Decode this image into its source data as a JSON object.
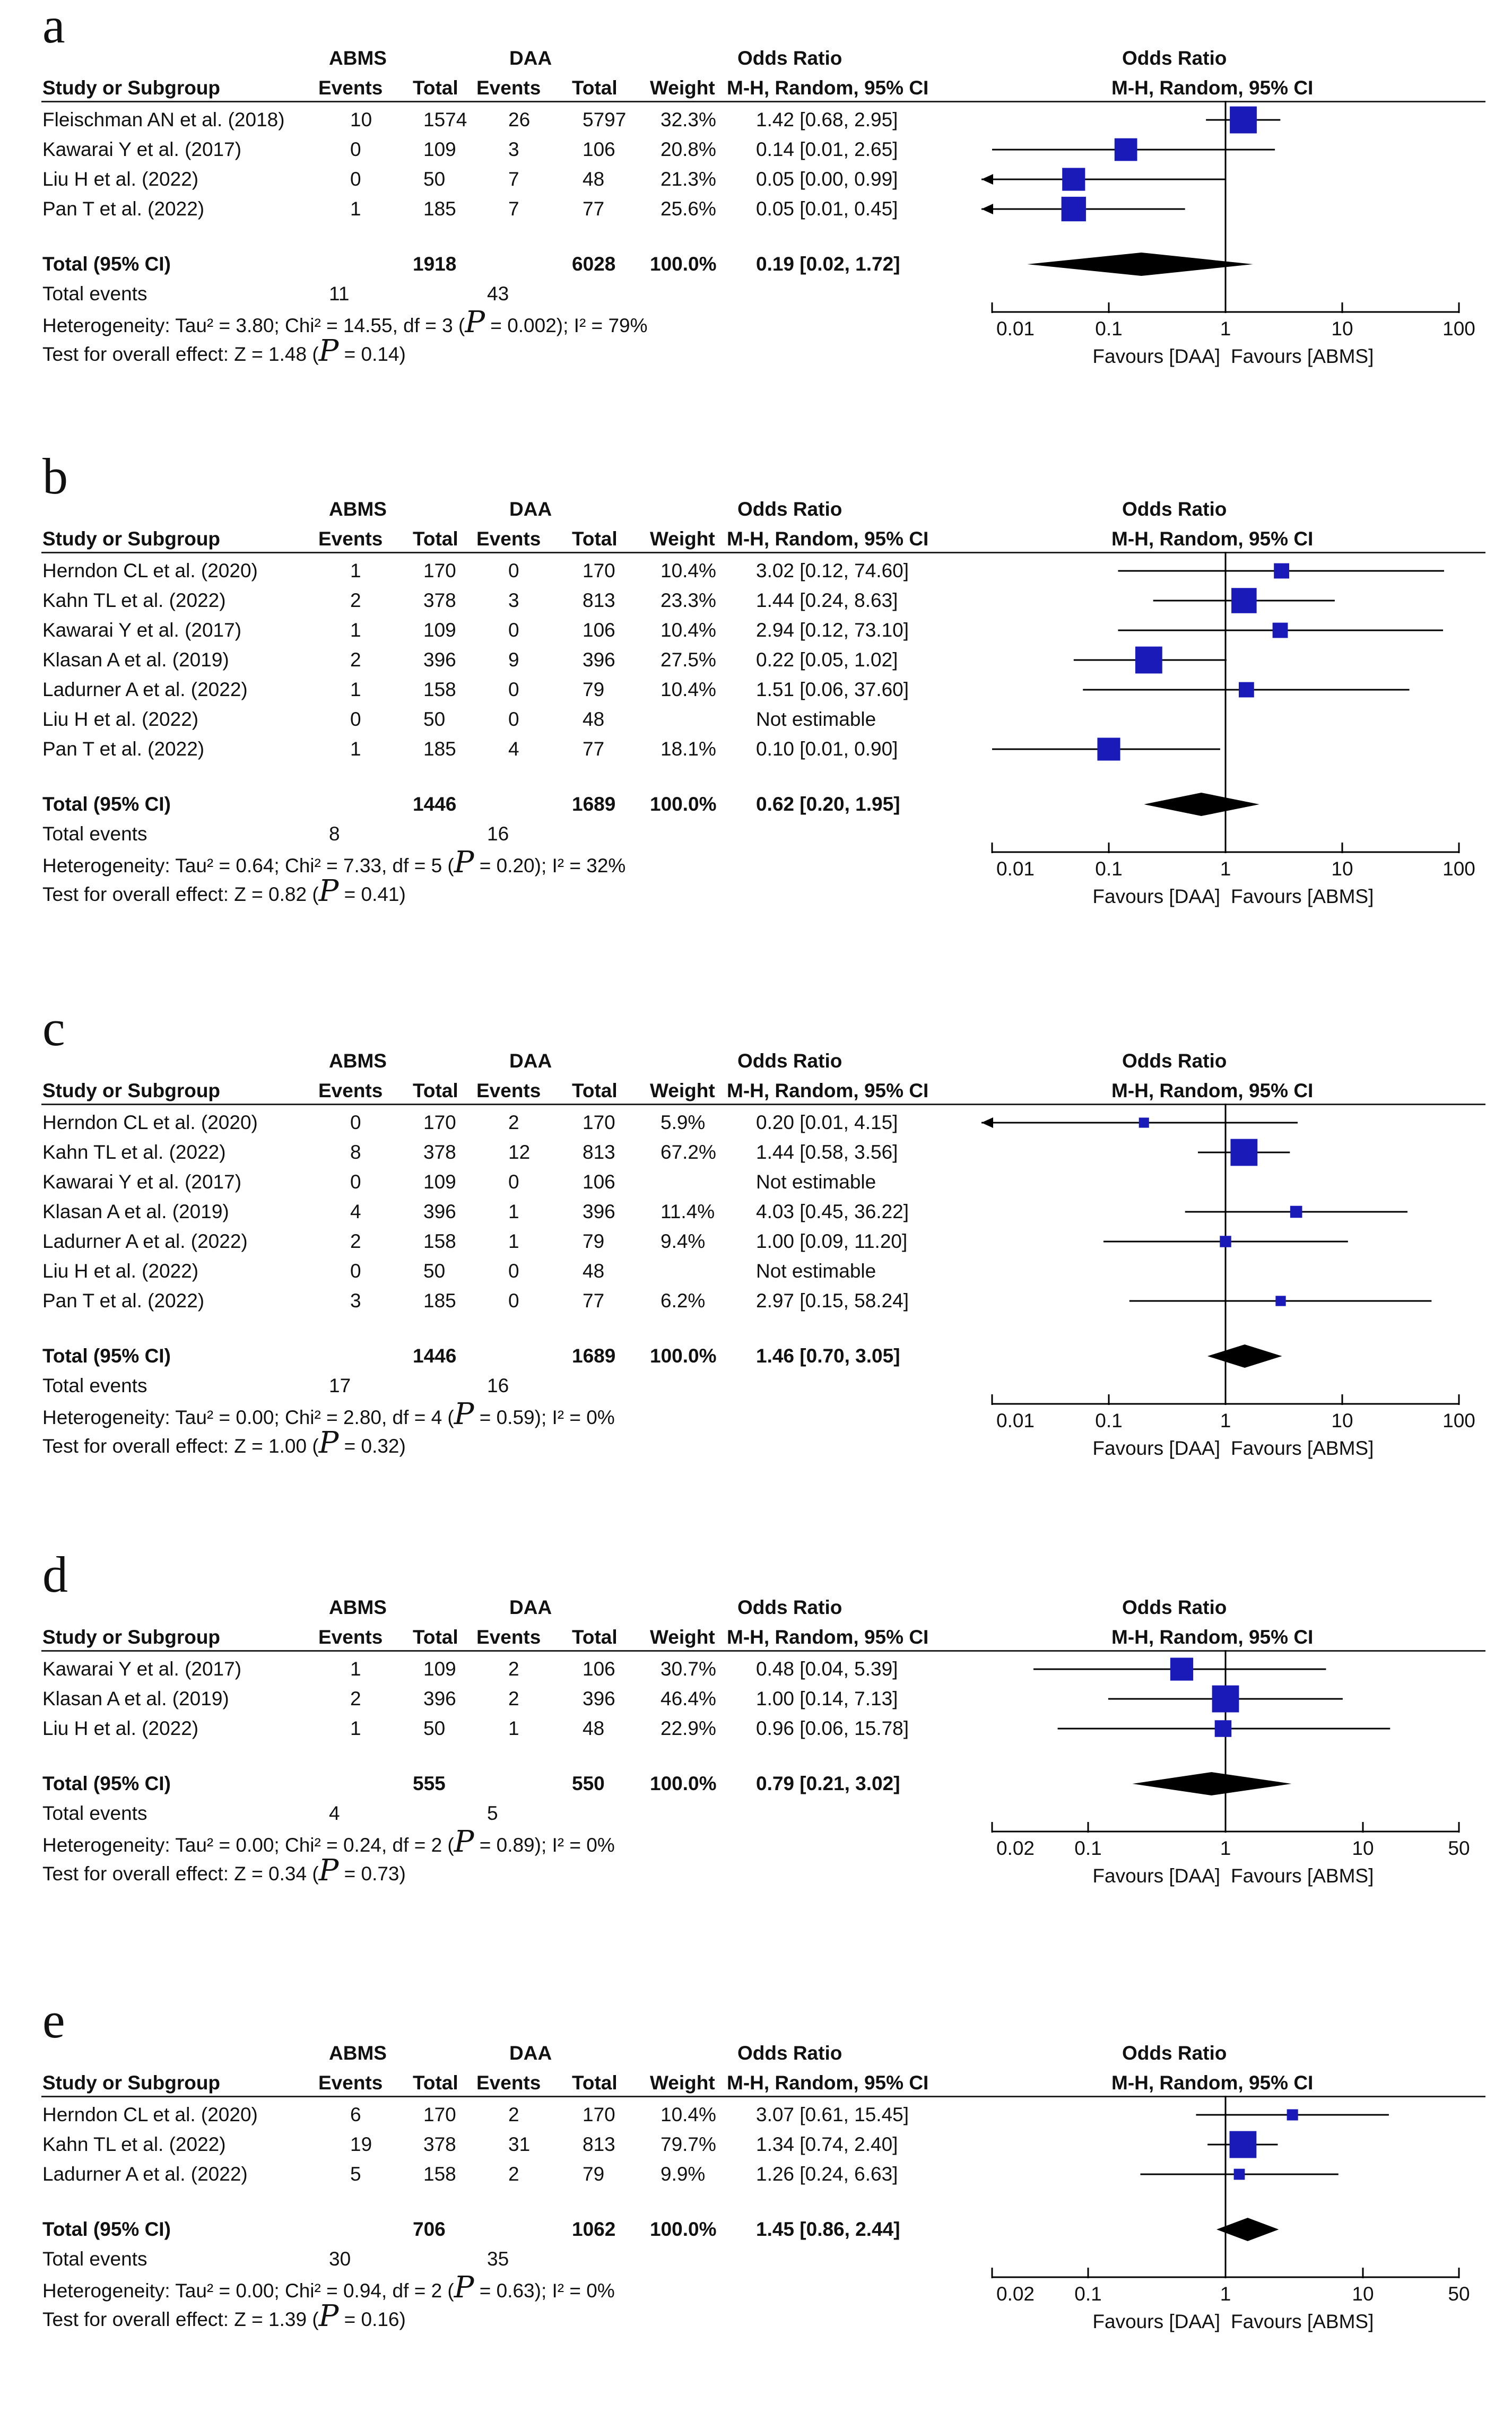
{
  "group_a_label": "ABMS",
  "group_b_label": "DAA",
  "col_headers": {
    "study": "Study or Subgroup",
    "events": "Events",
    "total": "Total",
    "weight": "Weight",
    "or_top": "Odds Ratio",
    "or_bottom": "M-H, Random, 95% CI"
  },
  "favours_left": "Favours [DAA]",
  "favours_right": "Favours [ABMS]",
  "total_label": "Total (95% CI)",
  "total_events_label": "Total events",
  "chart_data": [
    {
      "type": "forest",
      "panel_label": "a",
      "axis_min": 0.01,
      "axis_max": 100,
      "ticks": [
        {
          "v": 0.01,
          "label": "0.01"
        },
        {
          "v": 0.1,
          "label": "0.1"
        },
        {
          "v": 1,
          "label": "1"
        },
        {
          "v": 10,
          "label": "10"
        },
        {
          "v": 100,
          "label": "100"
        }
      ],
      "studies": [
        {
          "name": "Fleischman AN et al. (2018)",
          "e1": "10",
          "n1": "1574",
          "e2": "26",
          "n2": "5797",
          "weight": "32.3%",
          "or_text": "1.42 [0.68, 2.95]",
          "or": 1.42,
          "lo": 0.68,
          "hi": 2.95
        },
        {
          "name": "Kawarai Y et al. (2017)",
          "e1": "0",
          "n1": "109",
          "e2": "3",
          "n2": "106",
          "weight": "20.8%",
          "or_text": "0.14 [0.01, 2.65]",
          "or": 0.14,
          "lo": 0.01,
          "hi": 2.65
        },
        {
          "name": "Liu H et al. (2022)",
          "e1": "0",
          "n1": "50",
          "e2": "7",
          "n2": "48",
          "weight": "21.3%",
          "or_text": "0.05 [0.00, 0.99]",
          "or": 0.05,
          "lo": 0.001,
          "hi": 0.99
        },
        {
          "name": "Pan T et al. (2022)",
          "e1": "1",
          "n1": "185",
          "e2": "7",
          "n2": "77",
          "weight": "25.6%",
          "or_text": "0.05 [0.01, 0.45]",
          "or": 0.05,
          "lo": 0.005,
          "hi": 0.45
        }
      ],
      "total": {
        "n1": "1918",
        "n2": "6028",
        "weight": "100.0%",
        "or_text": "0.19 [0.02, 1.72]",
        "or": 0.19,
        "lo": 0.02,
        "hi": 1.72
      },
      "total_events": {
        "e1": "11",
        "e2": "43"
      },
      "heterogeneity": {
        "pre": "Heterogeneity: Tau² = 3.80; Chi² = 14.55, df = 3 (",
        "p": "P",
        "post": " = 0.002); I² = 79%"
      },
      "overall": {
        "pre": "Test for overall effect: Z = 1.48 (",
        "p": "P",
        "post": " = 0.14)"
      }
    },
    {
      "type": "forest",
      "panel_label": "b",
      "axis_min": 0.01,
      "axis_max": 100,
      "ticks": [
        {
          "v": 0.01,
          "label": "0.01"
        },
        {
          "v": 0.1,
          "label": "0.1"
        },
        {
          "v": 1,
          "label": "1"
        },
        {
          "v": 10,
          "label": "10"
        },
        {
          "v": 100,
          "label": "100"
        }
      ],
      "studies": [
        {
          "name": "Herndon CL et al. (2020)",
          "e1": "1",
          "n1": "170",
          "e2": "0",
          "n2": "170",
          "weight": "10.4%",
          "or_text": "3.02 [0.12, 74.60]",
          "or": 3.02,
          "lo": 0.12,
          "hi": 74.6
        },
        {
          "name": "Kahn TL et al. (2022)",
          "e1": "2",
          "n1": "378",
          "e2": "3",
          "n2": "813",
          "weight": "23.3%",
          "or_text": "1.44 [0.24, 8.63]",
          "or": 1.44,
          "lo": 0.24,
          "hi": 8.63
        },
        {
          "name": "Kawarai Y et al. (2017)",
          "e1": "1",
          "n1": "109",
          "e2": "0",
          "n2": "106",
          "weight": "10.4%",
          "or_text": "2.94 [0.12, 73.10]",
          "or": 2.94,
          "lo": 0.12,
          "hi": 73.1
        },
        {
          "name": "Klasan A et al. (2019)",
          "e1": "2",
          "n1": "396",
          "e2": "9",
          "n2": "396",
          "weight": "27.5%",
          "or_text": "0.22 [0.05, 1.02]",
          "or": 0.22,
          "lo": 0.05,
          "hi": 1.02
        },
        {
          "name": "Ladurner A et al. (2022)",
          "e1": "1",
          "n1": "158",
          "e2": "0",
          "n2": "79",
          "weight": "10.4%",
          "or_text": "1.51 [0.06, 37.60]",
          "or": 1.51,
          "lo": 0.06,
          "hi": 37.6
        },
        {
          "name": "Liu H et al. (2022)",
          "e1": "0",
          "n1": "50",
          "e2": "0",
          "n2": "48",
          "weight": "",
          "or_text": "Not estimable",
          "or": null,
          "lo": null,
          "hi": null
        },
        {
          "name": "Pan T et al. (2022)",
          "e1": "1",
          "n1": "185",
          "e2": "4",
          "n2": "77",
          "weight": "18.1%",
          "or_text": "0.10 [0.01, 0.90]",
          "or": 0.1,
          "lo": 0.01,
          "hi": 0.9
        }
      ],
      "total": {
        "n1": "1446",
        "n2": "1689",
        "weight": "100.0%",
        "or_text": "0.62 [0.20, 1.95]",
        "or": 0.62,
        "lo": 0.2,
        "hi": 1.95
      },
      "total_events": {
        "e1": "8",
        "e2": "16"
      },
      "heterogeneity": {
        "pre": "Heterogeneity: Tau² = 0.64; Chi² = 7.33, df = 5 (",
        "p": "P",
        "post": " = 0.20); I² = 32%"
      },
      "overall": {
        "pre": "Test for overall effect: Z = 0.82 (",
        "p": "P",
        "post": " = 0.41)"
      }
    },
    {
      "type": "forest",
      "panel_label": "c",
      "axis_min": 0.01,
      "axis_max": 100,
      "ticks": [
        {
          "v": 0.01,
          "label": "0.01"
        },
        {
          "v": 0.1,
          "label": "0.1"
        },
        {
          "v": 1,
          "label": "1"
        },
        {
          "v": 10,
          "label": "10"
        },
        {
          "v": 100,
          "label": "100"
        }
      ],
      "studies": [
        {
          "name": "Herndon CL et al. (2020)",
          "e1": "0",
          "n1": "170",
          "e2": "2",
          "n2": "170",
          "weight": "5.9%",
          "or_text": "0.20 [0.01, 4.15]",
          "or": 0.2,
          "lo": 0.005,
          "hi": 4.15
        },
        {
          "name": "Kahn TL et al. (2022)",
          "e1": "8",
          "n1": "378",
          "e2": "12",
          "n2": "813",
          "weight": "67.2%",
          "or_text": "1.44 [0.58, 3.56]",
          "or": 1.44,
          "lo": 0.58,
          "hi": 3.56
        },
        {
          "name": "Kawarai Y et al. (2017)",
          "e1": "0",
          "n1": "109",
          "e2": "0",
          "n2": "106",
          "weight": "",
          "or_text": "Not estimable",
          "or": null,
          "lo": null,
          "hi": null
        },
        {
          "name": "Klasan A et al. (2019)",
          "e1": "4",
          "n1": "396",
          "e2": "1",
          "n2": "396",
          "weight": "11.4%",
          "or_text": "4.03 [0.45, 36.22]",
          "or": 4.03,
          "lo": 0.45,
          "hi": 36.22
        },
        {
          "name": "Ladurner A et al. (2022)",
          "e1": "2",
          "n1": "158",
          "e2": "1",
          "n2": "79",
          "weight": "9.4%",
          "or_text": "1.00 [0.09, 11.20]",
          "or": 1.0,
          "lo": 0.09,
          "hi": 11.2
        },
        {
          "name": "Liu H et al. (2022)",
          "e1": "0",
          "n1": "50",
          "e2": "0",
          "n2": "48",
          "weight": "",
          "or_text": "Not estimable",
          "or": null,
          "lo": null,
          "hi": null
        },
        {
          "name": "Pan T et al. (2022)",
          "e1": "3",
          "n1": "185",
          "e2": "0",
          "n2": "77",
          "weight": "6.2%",
          "or_text": "2.97 [0.15, 58.24]",
          "or": 2.97,
          "lo": 0.15,
          "hi": 58.24
        }
      ],
      "total": {
        "n1": "1446",
        "n2": "1689",
        "weight": "100.0%",
        "or_text": "1.46 [0.70, 3.05]",
        "or": 1.46,
        "lo": 0.7,
        "hi": 3.05
      },
      "total_events": {
        "e1": "17",
        "e2": "16"
      },
      "heterogeneity": {
        "pre": "Heterogeneity: Tau² = 0.00; Chi² = 2.80, df = 4 (",
        "p": "P",
        "post": " = 0.59); I² = 0%"
      },
      "overall": {
        "pre": "Test for overall effect: Z = 1.00 (",
        "p": "P",
        "post": " = 0.32)"
      }
    },
    {
      "type": "forest",
      "panel_label": "d",
      "axis_min": 0.02,
      "axis_max": 50,
      "ticks": [
        {
          "v": 0.02,
          "label": "0.02"
        },
        {
          "v": 0.1,
          "label": "0.1"
        },
        {
          "v": 1,
          "label": "1"
        },
        {
          "v": 10,
          "label": "10"
        },
        {
          "v": 50,
          "label": "50"
        }
      ],
      "studies": [
        {
          "name": "Kawarai Y et al. (2017)",
          "e1": "1",
          "n1": "109",
          "e2": "2",
          "n2": "106",
          "weight": "30.7%",
          "or_text": "0.48 [0.04, 5.39]",
          "or": 0.48,
          "lo": 0.04,
          "hi": 5.39
        },
        {
          "name": "Klasan A et al. (2019)",
          "e1": "2",
          "n1": "396",
          "e2": "2",
          "n2": "396",
          "weight": "46.4%",
          "or_text": "1.00 [0.14, 7.13]",
          "or": 1.0,
          "lo": 0.14,
          "hi": 7.13
        },
        {
          "name": "Liu H et al. (2022)",
          "e1": "1",
          "n1": "50",
          "e2": "1",
          "n2": "48",
          "weight": "22.9%",
          "or_text": "0.96 [0.06, 15.78]",
          "or": 0.96,
          "lo": 0.06,
          "hi": 15.78
        }
      ],
      "total": {
        "n1": "555",
        "n2": "550",
        "weight": "100.0%",
        "or_text": "0.79 [0.21, 3.02]",
        "or": 0.79,
        "lo": 0.21,
        "hi": 3.02
      },
      "total_events": {
        "e1": "4",
        "e2": "5"
      },
      "heterogeneity": {
        "pre": "Heterogeneity: Tau² = 0.00; Chi² = 0.24, df = 2 (",
        "p": "P",
        "post": " = 0.89); I² = 0%"
      },
      "overall": {
        "pre": "Test for overall effect: Z = 0.34 (",
        "p": "P",
        "post": " = 0.73)"
      }
    },
    {
      "type": "forest",
      "panel_label": "e",
      "axis_min": 0.02,
      "axis_max": 50,
      "ticks": [
        {
          "v": 0.02,
          "label": "0.02"
        },
        {
          "v": 0.1,
          "label": "0.1"
        },
        {
          "v": 1,
          "label": "1"
        },
        {
          "v": 10,
          "label": "10"
        },
        {
          "v": 50,
          "label": "50"
        }
      ],
      "studies": [
        {
          "name": "Herndon CL et al. (2020)",
          "e1": "6",
          "n1": "170",
          "e2": "2",
          "n2": "170",
          "weight": "10.4%",
          "or_text": "3.07 [0.61, 15.45]",
          "or": 3.07,
          "lo": 0.61,
          "hi": 15.45
        },
        {
          "name": "Kahn TL et al. (2022)",
          "e1": "19",
          "n1": "378",
          "e2": "31",
          "n2": "813",
          "weight": "79.7%",
          "or_text": "1.34 [0.74, 2.40]",
          "or": 1.34,
          "lo": 0.74,
          "hi": 2.4
        },
        {
          "name": "Ladurner A et al. (2022)",
          "e1": "5",
          "n1": "158",
          "e2": "2",
          "n2": "79",
          "weight": "9.9%",
          "or_text": "1.26 [0.24, 6.63]",
          "or": 1.26,
          "lo": 0.24,
          "hi": 6.63
        }
      ],
      "total": {
        "n1": "706",
        "n2": "1062",
        "weight": "100.0%",
        "or_text": "1.45 [0.86, 2.44]",
        "or": 1.45,
        "lo": 0.86,
        "hi": 2.44
      },
      "total_events": {
        "e1": "30",
        "e2": "35"
      },
      "heterogeneity": {
        "pre": "Heterogeneity: Tau² = 0.00; Chi² = 0.94, df = 2 (",
        "p": "P",
        "post": " = 0.63); I² = 0%"
      },
      "overall": {
        "pre": "Test for overall effect: Z = 1.39 (",
        "p": "P",
        "post": " = 0.16)"
      }
    }
  ],
  "colors": {
    "marker": "#1a1ab8",
    "diamond": "#000000",
    "line": "#000000"
  }
}
